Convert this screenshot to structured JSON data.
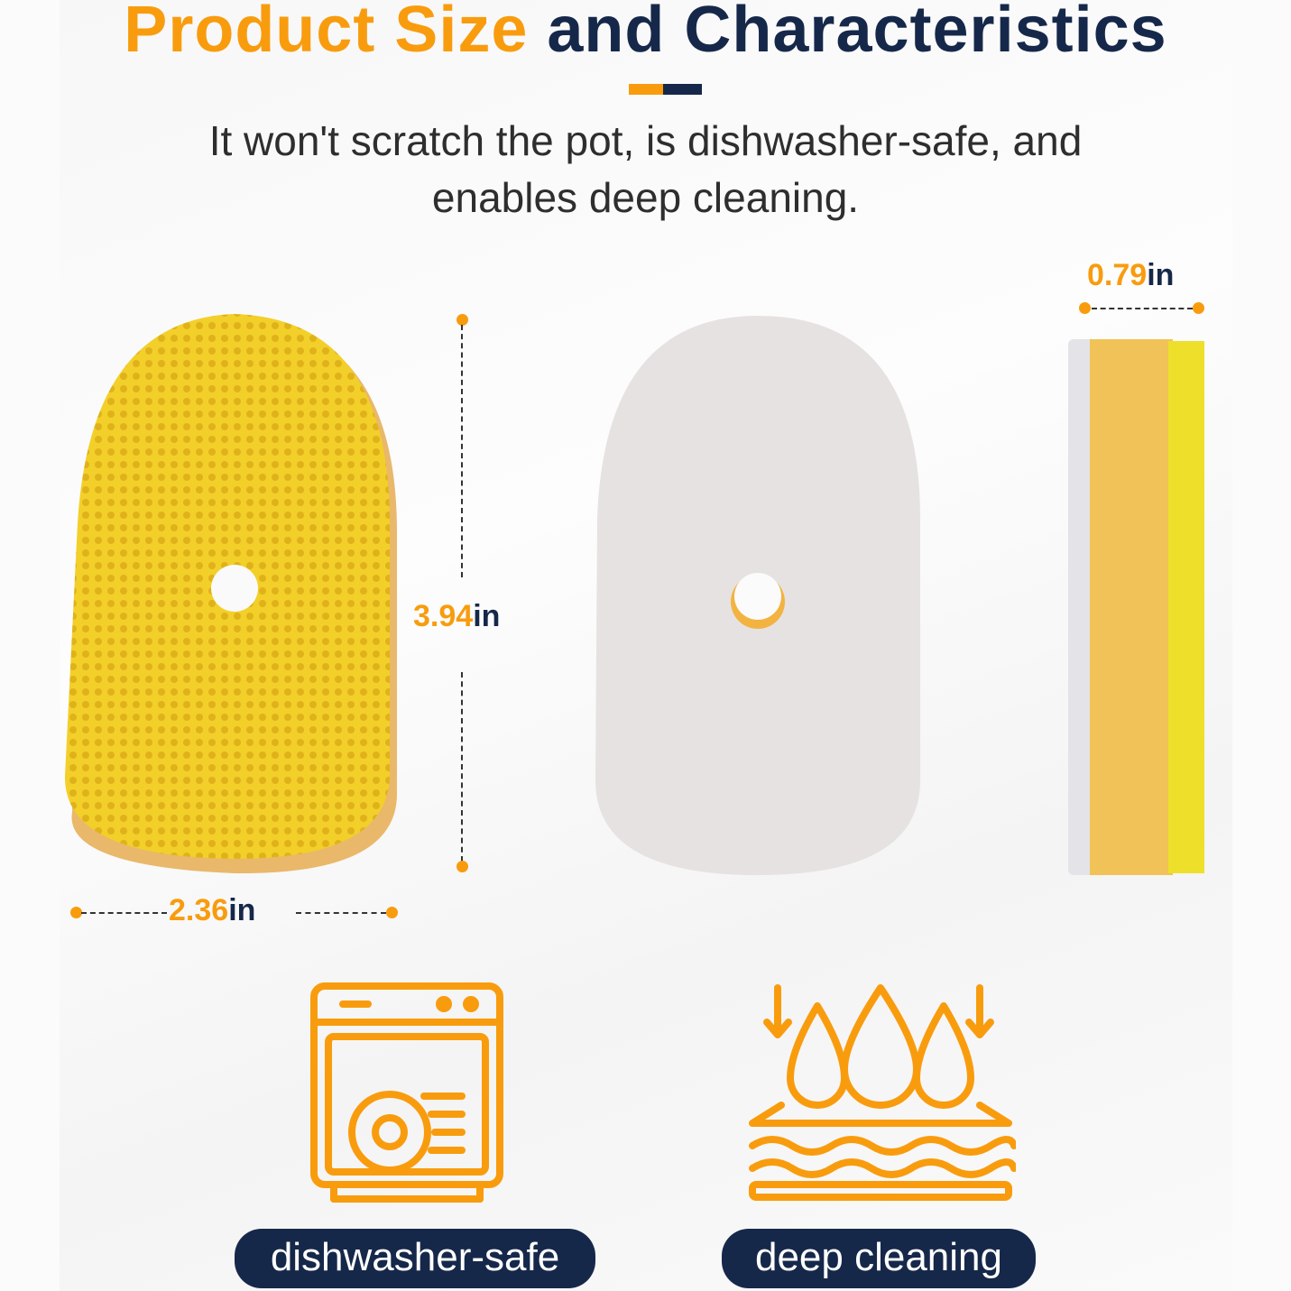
{
  "header": {
    "title_highlight": "Product Size",
    "title_rest": "and Characteristics",
    "subtitle_line1": "It won't scratch the pot, is dishwasher-safe, and",
    "subtitle_line2": "enables deep cleaning."
  },
  "dimensions": {
    "height": {
      "value": "3.94",
      "unit": "in"
    },
    "width": {
      "value": "2.36",
      "unit": "in"
    },
    "thickness": {
      "value": "0.79",
      "unit": "in"
    }
  },
  "features": [
    {
      "label": "dishwasher-safe",
      "icon": "dishwasher-icon"
    },
    {
      "label": "deep cleaning",
      "icon": "water-drops-icon"
    }
  ],
  "colors": {
    "accent": "#f89c0e",
    "navy": "#16284a",
    "sponge_yellow": "#f4d22a",
    "scrub_white": "#e8e4e2"
  }
}
